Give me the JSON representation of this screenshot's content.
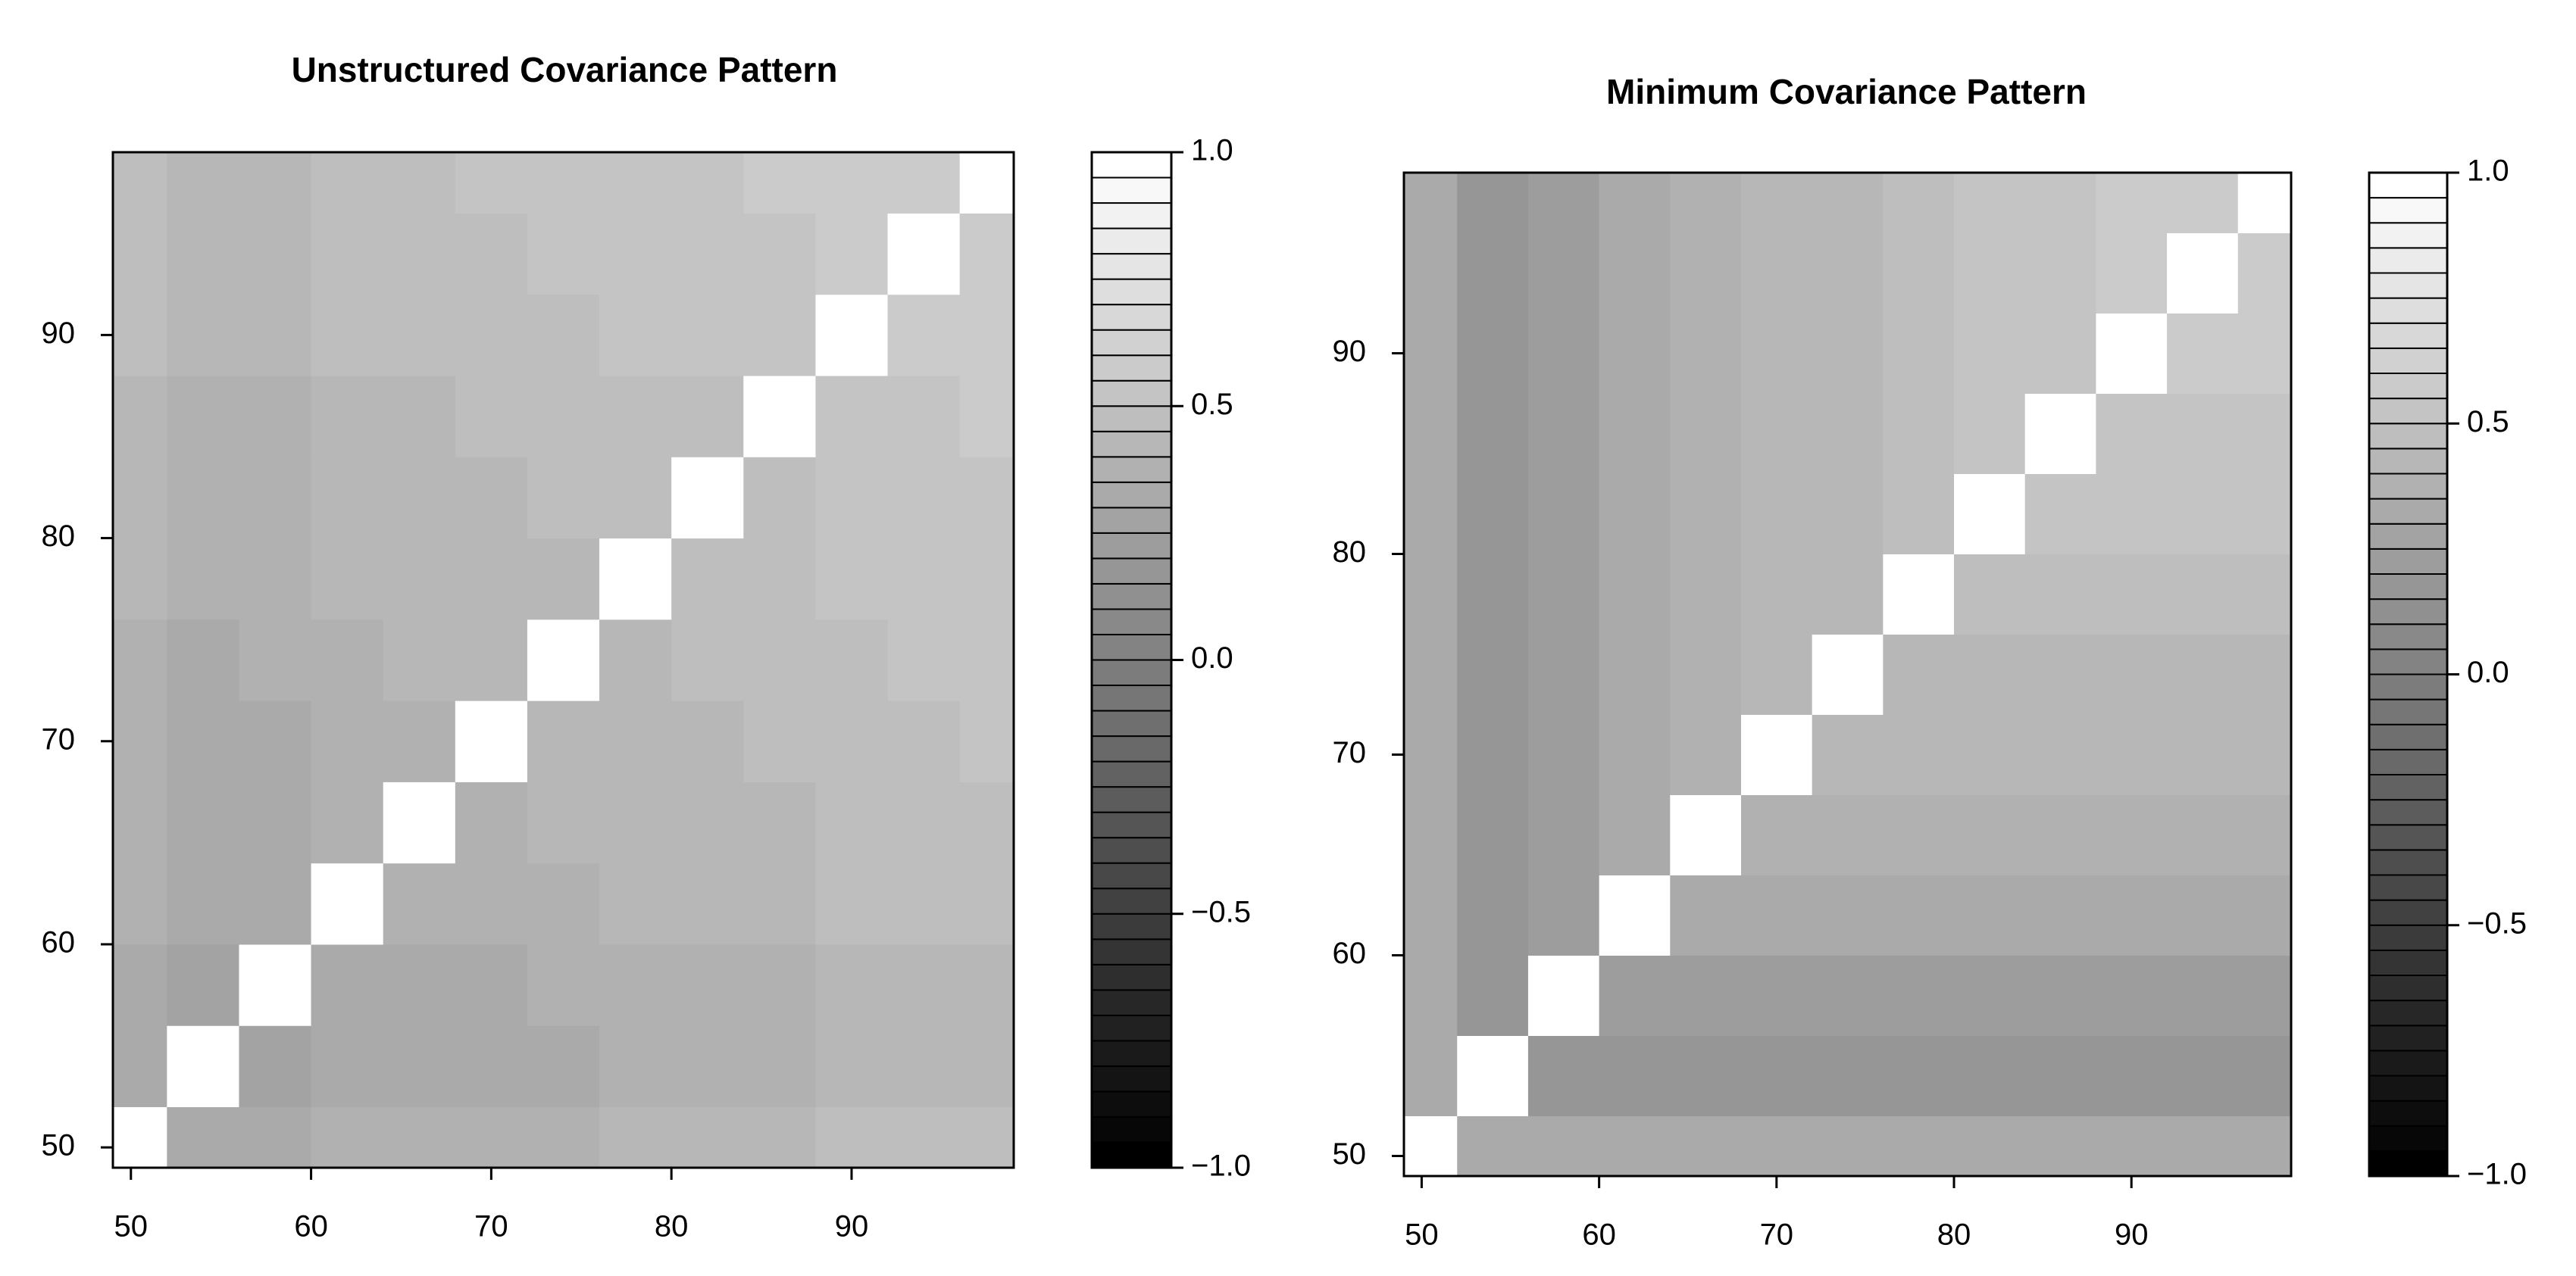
{
  "chart_data": [
    {
      "type": "heatmap",
      "title": "Unstructured Covariance Pattern",
      "x": [
        50,
        54,
        58,
        62,
        66,
        70,
        74,
        78,
        82,
        86,
        90,
        94,
        98
      ],
      "y": [
        50,
        54,
        58,
        62,
        66,
        70,
        74,
        78,
        82,
        86,
        90,
        94,
        98
      ],
      "z": [
        [
          1,
          0.3,
          0.32,
          0.35,
          0.37,
          0.38,
          0.39,
          0.4,
          0.42,
          0.43,
          0.45,
          0.47,
          0.48
        ],
        [
          0.3,
          1,
          0.27,
          0.3,
          0.32,
          0.33,
          0.34,
          0.35,
          0.37,
          0.38,
          0.4,
          0.42,
          0.43
        ],
        [
          0.32,
          0.27,
          1,
          0.32,
          0.33,
          0.34,
          0.35,
          0.37,
          0.38,
          0.39,
          0.42,
          0.43,
          0.44
        ],
        [
          0.35,
          0.3,
          0.32,
          1,
          0.37,
          0.38,
          0.39,
          0.4,
          0.42,
          0.43,
          0.45,
          0.47,
          0.48
        ],
        [
          0.37,
          0.32,
          0.33,
          0.37,
          1,
          0.39,
          0.4,
          0.42,
          0.43,
          0.44,
          0.47,
          0.48,
          0.49
        ],
        [
          0.38,
          0.33,
          0.34,
          0.38,
          0.39,
          1,
          0.41,
          0.43,
          0.44,
          0.45,
          0.48,
          0.49,
          0.5
        ],
        [
          0.39,
          0.34,
          0.35,
          0.39,
          0.4,
          0.41,
          1,
          0.44,
          0.45,
          0.46,
          0.49,
          0.5,
          0.51
        ],
        [
          0.4,
          0.35,
          0.37,
          0.4,
          0.42,
          0.43,
          0.44,
          1,
          0.47,
          0.48,
          0.5,
          0.52,
          0.53
        ],
        [
          0.42,
          0.37,
          0.38,
          0.42,
          0.43,
          0.44,
          0.45,
          0.47,
          1,
          0.49,
          0.52,
          0.53,
          0.54
        ],
        [
          0.43,
          0.38,
          0.39,
          0.43,
          0.44,
          0.45,
          0.46,
          0.48,
          0.49,
          1,
          0.53,
          0.54,
          0.55
        ],
        [
          0.45,
          0.4,
          0.42,
          0.45,
          0.47,
          0.48,
          0.49,
          0.5,
          0.52,
          0.53,
          1,
          0.57,
          0.58
        ],
        [
          0.47,
          0.42,
          0.43,
          0.47,
          0.48,
          0.49,
          0.5,
          0.52,
          0.53,
          0.54,
          0.57,
          1,
          0.59
        ],
        [
          0.48,
          0.43,
          0.44,
          0.48,
          0.49,
          0.5,
          0.51,
          0.53,
          0.54,
          0.55,
          0.58,
          0.59,
          1
        ]
      ],
      "xlim": [
        49,
        99
      ],
      "ylim": [
        49,
        99
      ],
      "xticks": [
        50,
        60,
        70,
        80,
        90
      ],
      "yticks": [
        50,
        60,
        70,
        80,
        90
      ],
      "zlim": [
        -1,
        1
      ],
      "levels": 40,
      "zticks": [
        {
          "value": -1,
          "label": "−1.0"
        },
        {
          "value": -0.5,
          "label": "−0.5"
        },
        {
          "value": 0,
          "label": "0.0"
        },
        0.5,
        {
          "value": 1,
          "label": "1.0"
        }
      ]
    },
    {
      "type": "heatmap",
      "title": "Minimum Covariance Pattern",
      "x": [
        50,
        54,
        58,
        62,
        66,
        70,
        74,
        78,
        82,
        86,
        90,
        94,
        98
      ],
      "y": [
        50,
        54,
        58,
        62,
        66,
        70,
        74,
        78,
        82,
        86,
        90,
        94,
        98
      ],
      "z": [
        [
          1,
          0.3,
          0.3,
          0.3,
          0.3,
          0.3,
          0.3,
          0.3,
          0.3,
          0.3,
          0.3,
          0.3,
          0.3
        ],
        [
          0.3,
          1,
          0.18,
          0.18,
          0.18,
          0.18,
          0.18,
          0.18,
          0.18,
          0.18,
          0.18,
          0.18,
          0.18
        ],
        [
          0.3,
          0.18,
          1,
          0.22,
          0.22,
          0.22,
          0.22,
          0.22,
          0.22,
          0.22,
          0.22,
          0.22,
          0.22
        ],
        [
          0.3,
          0.18,
          0.22,
          1,
          0.3,
          0.3,
          0.3,
          0.3,
          0.3,
          0.3,
          0.3,
          0.3,
          0.3
        ],
        [
          0.3,
          0.18,
          0.22,
          0.3,
          1,
          0.35,
          0.35,
          0.35,
          0.35,
          0.35,
          0.35,
          0.35,
          0.35
        ],
        [
          0.3,
          0.18,
          0.22,
          0.3,
          0.35,
          1,
          0.4,
          0.4,
          0.4,
          0.4,
          0.4,
          0.4,
          0.4
        ],
        [
          0.3,
          0.18,
          0.22,
          0.3,
          0.35,
          0.4,
          1,
          0.42,
          0.42,
          0.42,
          0.42,
          0.42,
          0.42
        ],
        [
          0.3,
          0.18,
          0.22,
          0.3,
          0.35,
          0.4,
          0.42,
          1,
          0.48,
          0.48,
          0.48,
          0.48,
          0.48
        ],
        [
          0.3,
          0.18,
          0.22,
          0.3,
          0.35,
          0.4,
          0.42,
          0.48,
          1,
          0.5,
          0.5,
          0.5,
          0.5
        ],
        [
          0.3,
          0.18,
          0.22,
          0.3,
          0.35,
          0.4,
          0.42,
          0.48,
          0.5,
          1,
          0.52,
          0.52,
          0.52
        ],
        [
          0.3,
          0.18,
          0.22,
          0.3,
          0.35,
          0.4,
          0.42,
          0.48,
          0.5,
          0.52,
          1,
          0.55,
          0.55
        ],
        [
          0.3,
          0.18,
          0.22,
          0.3,
          0.35,
          0.4,
          0.42,
          0.48,
          0.5,
          0.52,
          0.55,
          1,
          0.58
        ],
        [
          0.3,
          0.18,
          0.22,
          0.3,
          0.35,
          0.4,
          0.42,
          0.48,
          0.5,
          0.52,
          0.55,
          0.58,
          1
        ]
      ],
      "xlim": [
        49,
        99
      ],
      "ylim": [
        49,
        99
      ],
      "xticks": [
        50,
        60,
        70,
        80,
        90
      ],
      "yticks": [
        50,
        60,
        70,
        80,
        90
      ],
      "zlim": [
        -1,
        1
      ],
      "levels": 40,
      "zticks": [
        {
          "value": -1,
          "label": "−1.0"
        },
        {
          "value": -0.5,
          "label": "−0.5"
        },
        {
          "value": 0,
          "label": "0.0"
        },
        0.5,
        {
          "value": 1,
          "label": "1.0"
        }
      ]
    }
  ]
}
